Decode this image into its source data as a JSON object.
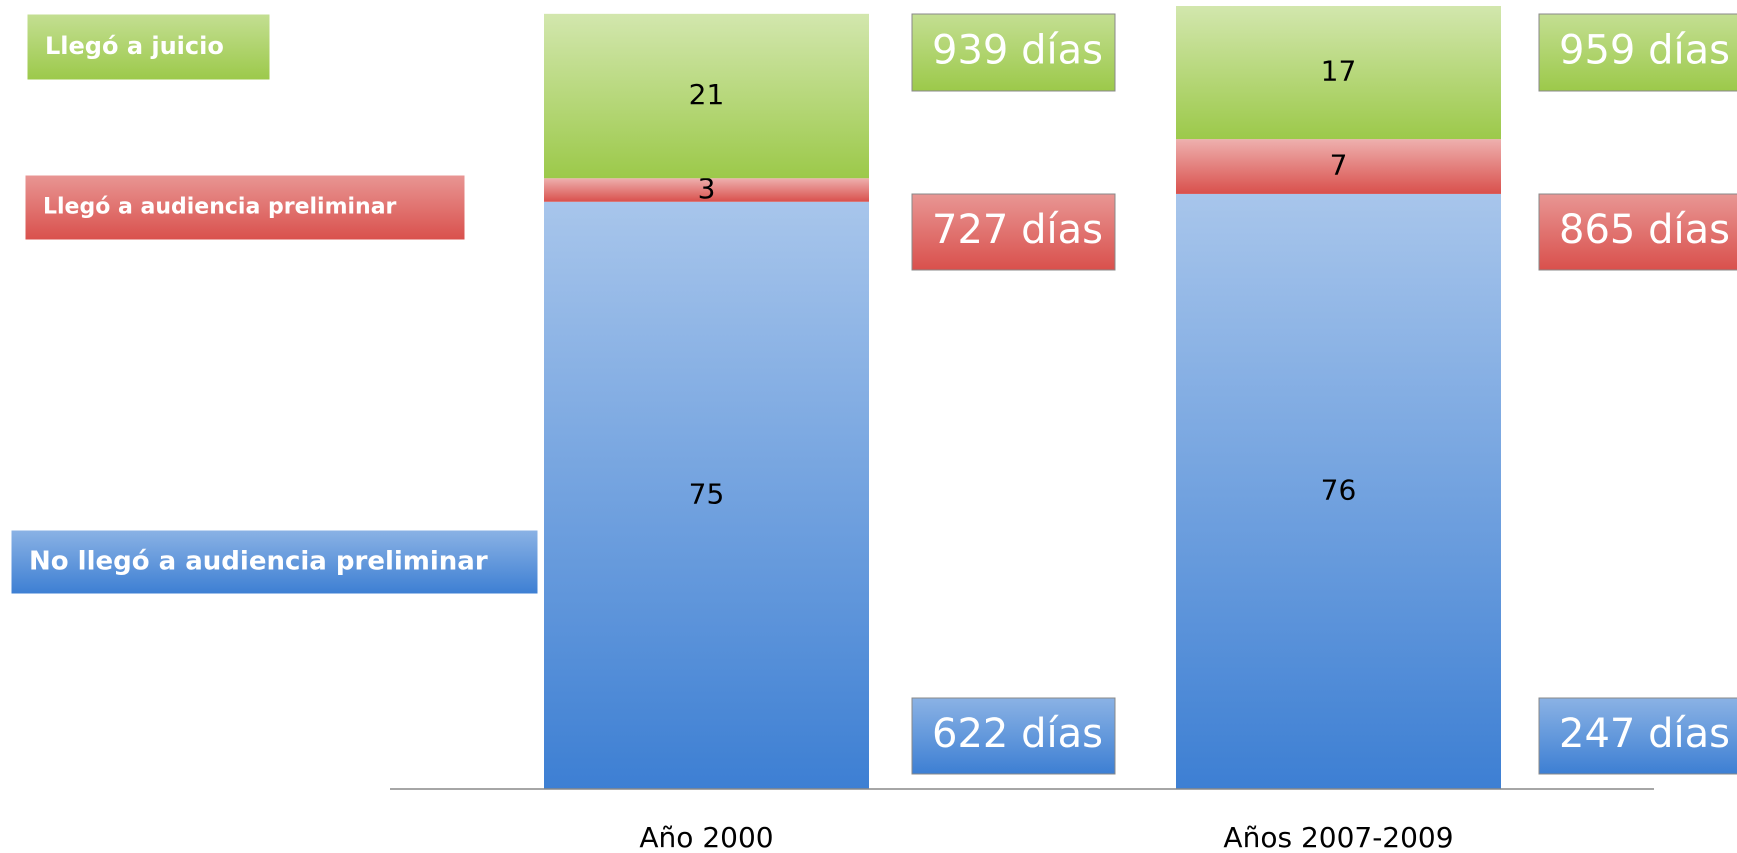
{
  "chart_data": {
    "type": "stacked_bar",
    "categories": [
      "Año 2000",
      "Años 2007-2009"
    ],
    "ylim": [
      0,
      100
    ],
    "series": [
      {
        "name": "No llegó a audiencia preliminar",
        "color": "#3d7fd3",
        "values": [
          75,
          76
        ],
        "labels": [
          "622 días",
          "247 días"
        ]
      },
      {
        "name": "Llegó a audiencia preliminar",
        "color": "#d9504c",
        "values": [
          3,
          7
        ],
        "labels": [
          "727 días",
          "865 días"
        ]
      },
      {
        "name": "Llegó a juicio",
        "color": "#9cc94a",
        "values": [
          21,
          17
        ],
        "labels": [
          "939 días",
          "959 días"
        ]
      }
    ]
  }
}
